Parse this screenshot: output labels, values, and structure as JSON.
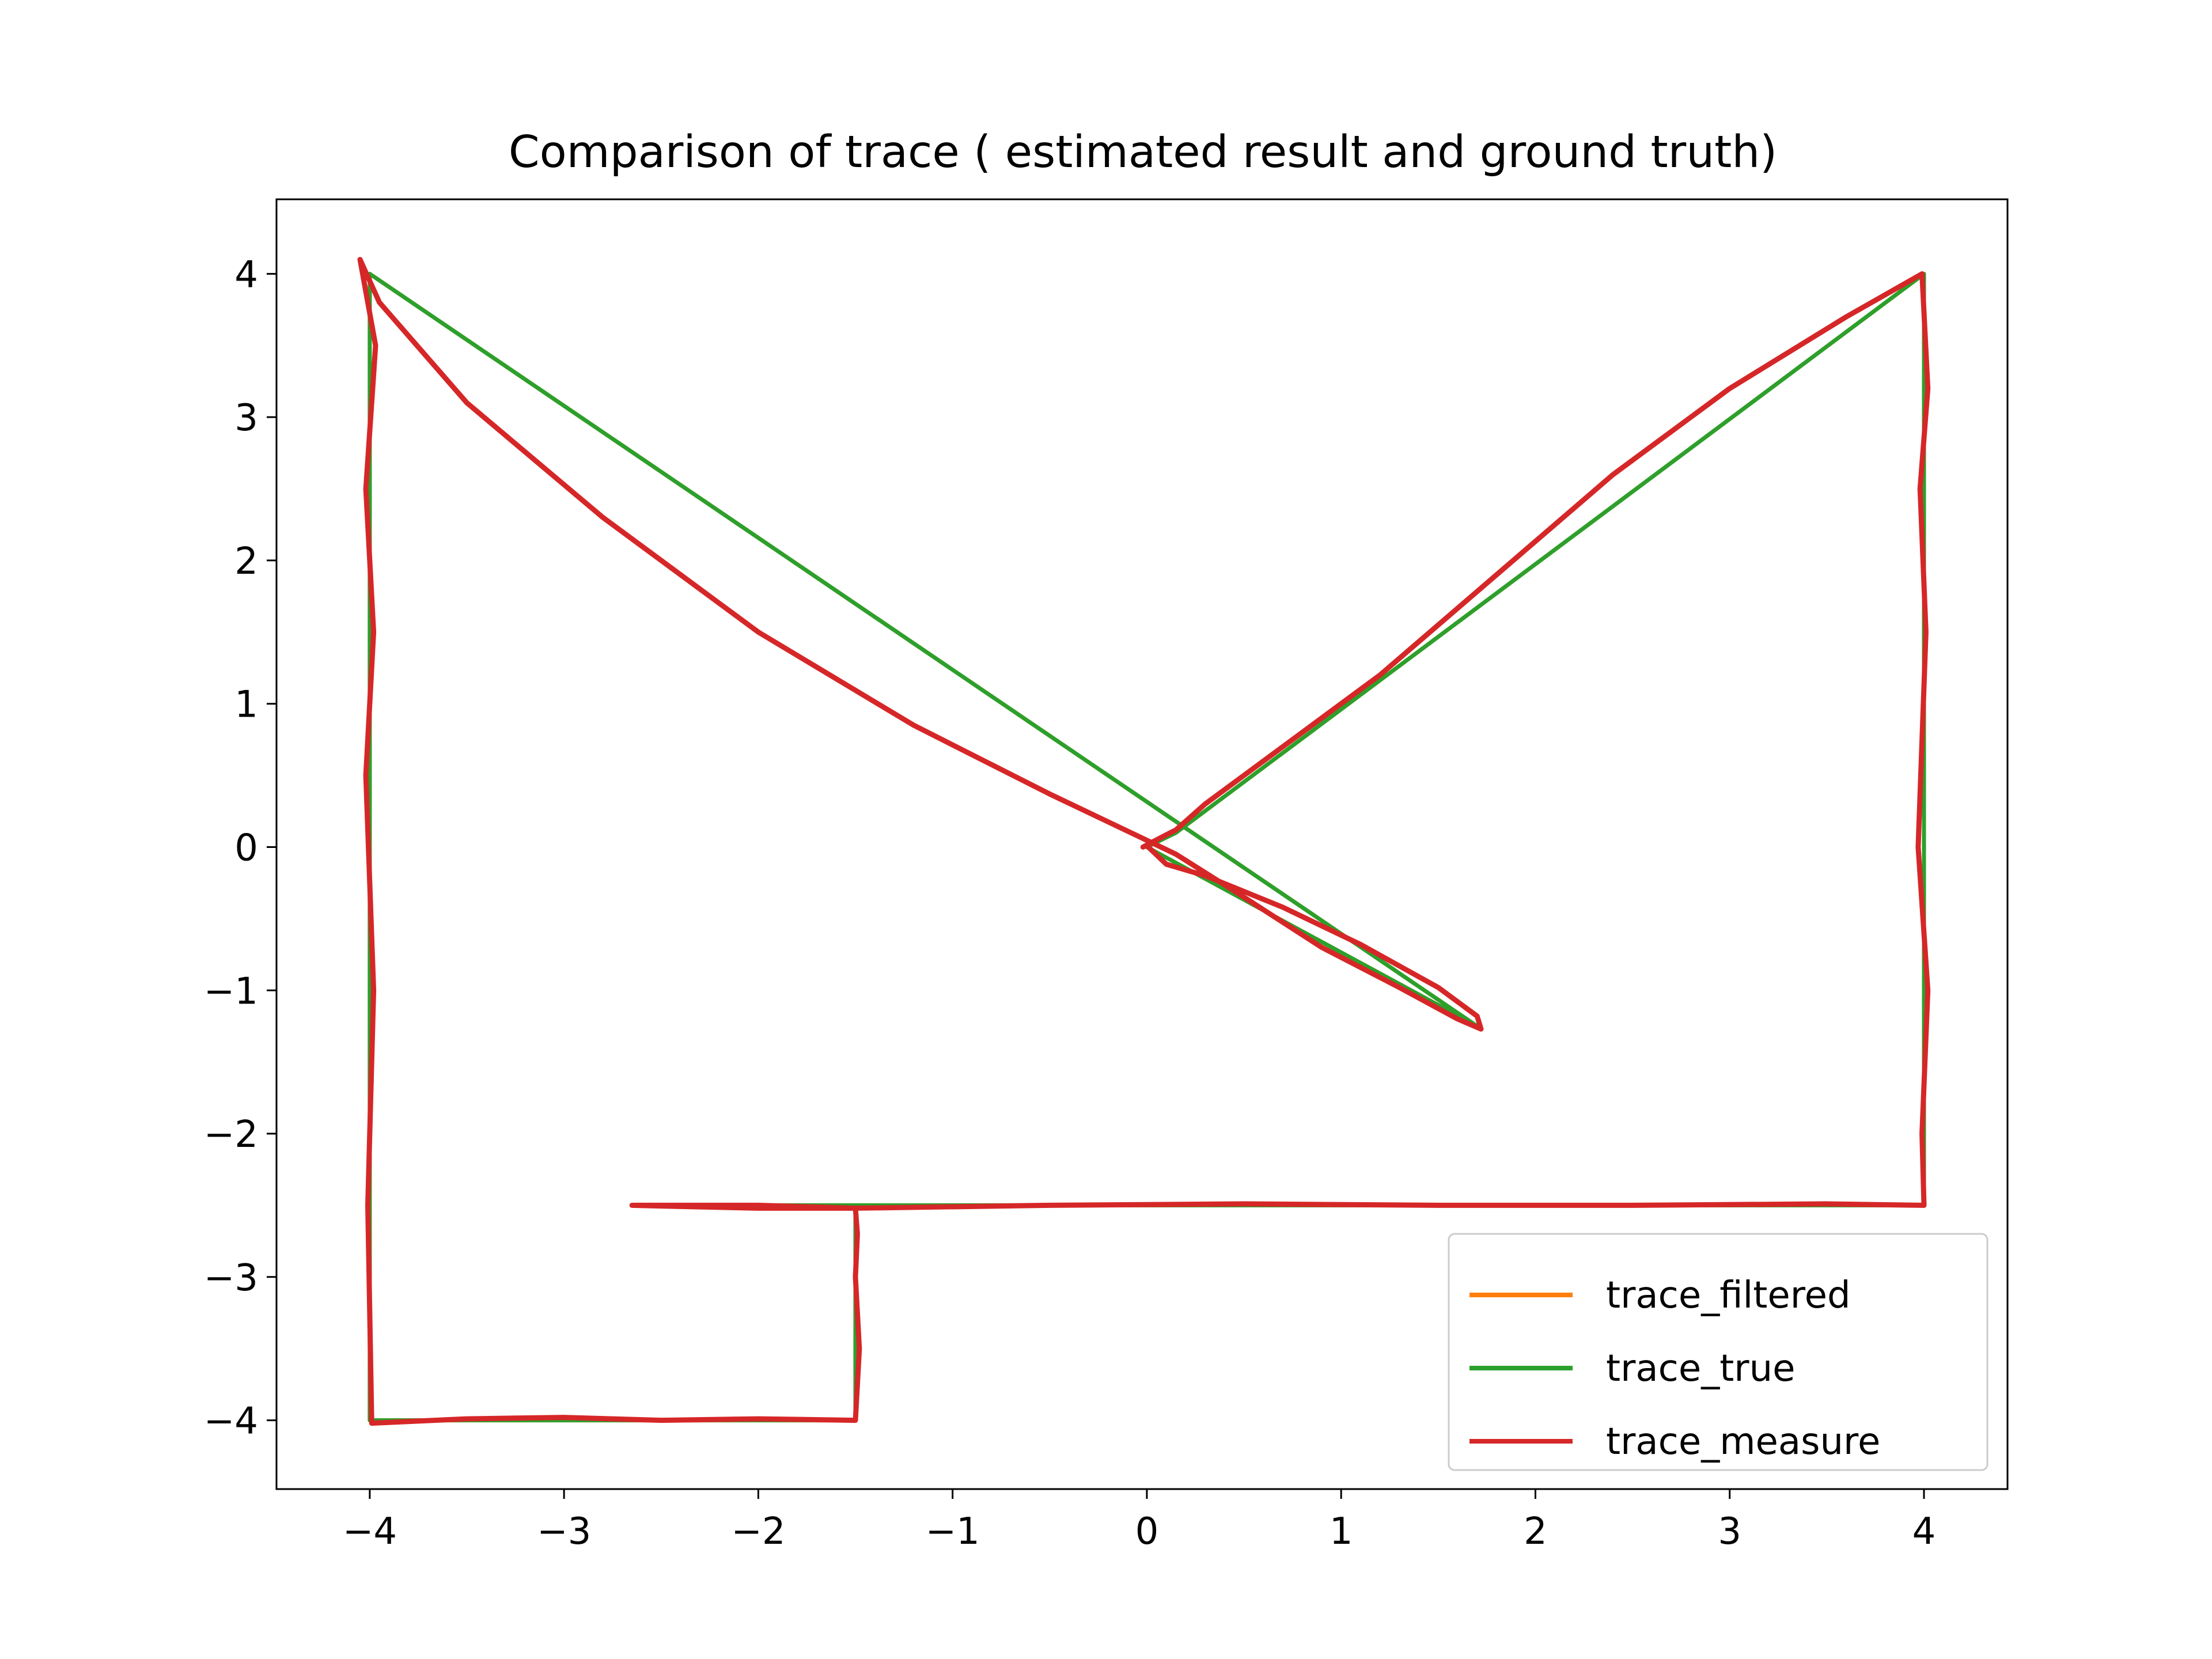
{
  "chart_data": {
    "type": "line",
    "title": "Comparison of trace ( estimated result and ground truth)",
    "xlabel": "",
    "ylabel": "",
    "xlim": [
      -4.48,
      4.43
    ],
    "ylim": [
      -4.48,
      4.52
    ],
    "xticks": [
      -4,
      -3,
      -2,
      -1,
      0,
      1,
      2,
      3,
      4
    ],
    "yticks": [
      -4,
      -3,
      -2,
      -1,
      0,
      1,
      2,
      3,
      4
    ],
    "xtick_labels": [
      "−4",
      "−3",
      "−2",
      "−1",
      "0",
      "1",
      "2",
      "3",
      "4"
    ],
    "ytick_labels": [
      "−4",
      "−3",
      "−2",
      "−1",
      "0",
      "1",
      "2",
      "3",
      "4"
    ],
    "grid": false,
    "legend_position": "lower right",
    "series": [
      {
        "name": "trace_filtered",
        "color": "#ff7f0e",
        "x": [
          0,
          1.7,
          1.7,
          -4.0,
          -4.0,
          -1.5,
          -1.5,
          -2.65,
          -1.5,
          4.0,
          4.0,
          0.15,
          0
        ],
        "y": [
          0,
          -1.25,
          -1.25,
          4.0,
          -4.0,
          -4.0,
          -2.5,
          -2.5,
          -2.5,
          -2.5,
          4.0,
          0.1,
          0
        ]
      },
      {
        "name": "trace_true",
        "color": "#2ca02c",
        "x": [
          0,
          1.7,
          1.7,
          -4.0,
          -4.0,
          -1.5,
          -1.5,
          -2.65,
          -1.5,
          4.0,
          4.0,
          0.15,
          0
        ],
        "y": [
          0,
          -1.25,
          -1.25,
          4.0,
          -4.0,
          -4.0,
          -2.5,
          -2.5,
          -2.5,
          -2.5,
          4.0,
          0.1,
          0
        ]
      },
      {
        "name": "trace_measure",
        "color": "#d62728",
        "x": [
          0,
          0.1,
          0.3,
          0.7,
          1.1,
          1.5,
          1.7,
          1.72,
          1.6,
          1.3,
          0.9,
          0.5,
          0.15,
          -0.5,
          -1.2,
          -2.0,
          -2.8,
          -3.5,
          -3.95,
          -4.05,
          -3.97,
          -4.02,
          -3.98,
          -4.02,
          -3.98,
          -4.01,
          -3.99,
          -3.5,
          -3.0,
          -2.5,
          -2.0,
          -1.5,
          -1.48,
          -1.5,
          -1.49,
          -1.5,
          -2.0,
          -2.65,
          -2.0,
          -1.5,
          -0.5,
          0.5,
          1.5,
          2.5,
          3.5,
          4.0,
          3.99,
          4.02,
          3.97,
          4.01,
          3.98,
          4.02,
          3.99,
          3.6,
          3.0,
          2.4,
          1.8,
          1.2,
          0.7,
          0.3,
          0.15,
          0.05,
          -0.02
        ],
        "y": [
          0.01,
          -0.12,
          -0.2,
          -0.42,
          -0.68,
          -0.98,
          -1.18,
          -1.27,
          -1.2,
          -0.98,
          -0.7,
          -0.35,
          -0.05,
          0.37,
          0.85,
          1.5,
          2.3,
          3.1,
          3.8,
          4.1,
          3.5,
          2.5,
          1.5,
          0.5,
          -1.0,
          -2.5,
          -4.02,
          -3.99,
          -3.98,
          -4.0,
          -3.99,
          -4.0,
          -3.5,
          -3.0,
          -2.7,
          -2.52,
          -2.52,
          -2.5,
          -2.5,
          -2.52,
          -2.5,
          -2.49,
          -2.5,
          -2.5,
          -2.49,
          -2.5,
          -2.0,
          -1.0,
          0.0,
          1.5,
          2.5,
          3.2,
          4.0,
          3.7,
          3.2,
          2.6,
          1.9,
          1.2,
          0.7,
          0.3,
          0.12,
          0.05,
          0.0
        ]
      }
    ]
  }
}
